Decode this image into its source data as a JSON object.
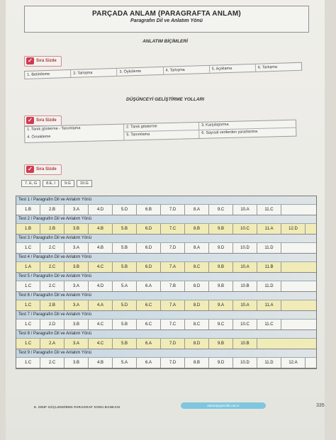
{
  "header": {
    "title": "PARÇADA ANLAM (PARAGRAFTA ANLAM)",
    "subtitle": "Paragrafın Dil ve Anlatım Yönü"
  },
  "section1": {
    "heading": "ANLATIM BİÇİMLERİ",
    "badge": "Sıra Sizde",
    "items": [
      "1. Betimleme",
      "2. Tartışma",
      "3. Öyküleme",
      "4. Tartışma",
      "5. Açıklama",
      "6. Tartışma"
    ]
  },
  "section2": {
    "heading": "DÜŞÜNCEYİ GELİŞTİRME YOLLARI",
    "badge": "Sıra Sizde",
    "cells": [
      "1. Tanık gösterme - Tanımlama",
      "2. Tanık gösterme",
      "3. Karşılaştırma",
      "4. Örnekleme",
      "5. Tanımlama",
      "6. Sayısal verilerden yararlanma"
    ]
  },
  "section3": {
    "badge": "Sıra Sizde",
    "items": [
      "7. E, G",
      "8.E, I",
      "9.G",
      "10.G"
    ]
  },
  "tests": [
    {
      "title": "Test 1 / Paragrafın Dil ve Anlatım Yönü",
      "answers": [
        "1.B",
        "2.B",
        "3.A",
        "4.D",
        "5.D",
        "6.B",
        "7.D",
        "8.A",
        "9.C",
        "10.A",
        "11.C"
      ]
    },
    {
      "title": "Test 2 / Paragrafın Dil ve Anlatım Yönü",
      "answers": [
        "1.B",
        "2.B",
        "3.B",
        "4.B",
        "5.B",
        "6.D",
        "7.C",
        "8.B",
        "9.B",
        "10.C",
        "11.A",
        "12.D"
      ]
    },
    {
      "title": "Test 3 / Paragrafın Dil ve Anlatım Yönü",
      "answers": [
        "1.C",
        "2.C",
        "3.A",
        "4.B",
        "5.B",
        "6.D",
        "7.D",
        "8.A",
        "9.D",
        "10.D",
        "11.D"
      ]
    },
    {
      "title": "Test 4 / Paragrafın Dil ve Anlatım Yönü",
      "answers": [
        "1.A",
        "2.C",
        "3.B",
        "4.C",
        "5.B",
        "6.D",
        "7.A",
        "8.C",
        "9.B",
        "10.A",
        "11.B"
      ]
    },
    {
      "title": "Test 5 / Paragrafın Dil ve Anlatım Yönü",
      "answers": [
        "1.C",
        "2.C",
        "3.A",
        "4.D",
        "5.A",
        "6.A",
        "7.B",
        "8.D",
        "9.B",
        "10.B",
        "11.D"
      ]
    },
    {
      "title": "Test 6 / Paragrafın Dil ve Anlatım Yönü",
      "answers": [
        "1.C",
        "2.B",
        "3.A",
        "4.A",
        "5.D",
        "6.C",
        "7.A",
        "8.D",
        "9.A",
        "10.A",
        "11.A"
      ]
    },
    {
      "title": "Test 7 / Paragrafın Dil ve Anlatım Yönü",
      "answers": [
        "1.C",
        "2.D",
        "3.B",
        "4.C",
        "5.B",
        "6.C",
        "7.C",
        "8.C",
        "9.C",
        "10.C",
        "11.C"
      ]
    },
    {
      "title": "Test 8 / Paragrafın Dil ve Anlatım Yönü",
      "answers": [
        "1.C",
        "2.A",
        "3.A",
        "4.C",
        "5.B",
        "6.A",
        "7.D",
        "8.D",
        "9.B",
        "10.B"
      ]
    },
    {
      "title": "Test 9 / Paragrafın Dil ve Anlatım Yönü",
      "answers": [
        "1.C",
        "2.C",
        "3.B",
        "4.B",
        "5.A",
        "6.A",
        "7.D",
        "8.B",
        "9.D",
        "10.D",
        "11.D",
        "12.A"
      ]
    }
  ],
  "footer": {
    "book": "8. SINIF GÜÇLENDİREN PARAGRAF SORU BANKASI",
    "site": "ankarayayincilik.com.tr",
    "page": "335"
  }
}
